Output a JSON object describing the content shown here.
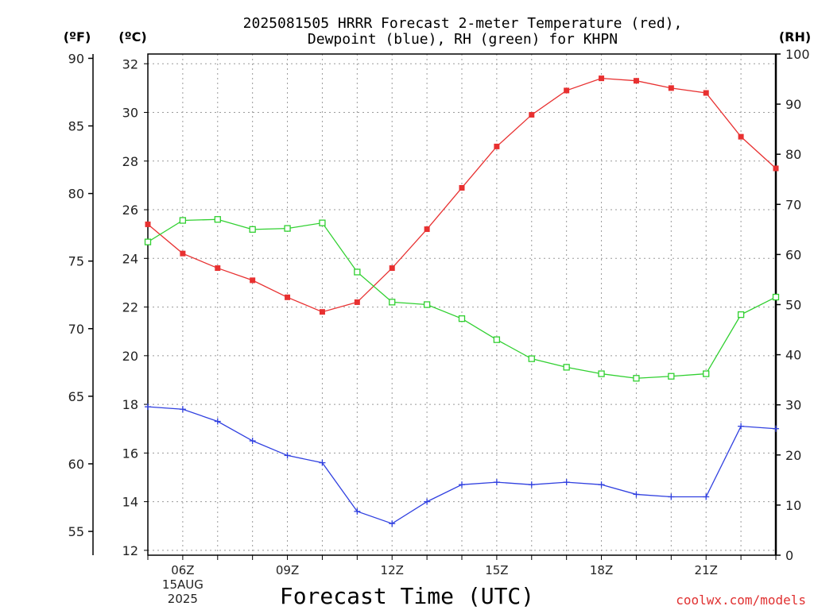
{
  "chart_data": {
    "type": "line",
    "title_line1": "2025081505 HRRR Forecast 2-meter Temperature (red),",
    "title_line2": "Dewpoint (blue), RH (green) for KHPN",
    "unit_f": "(ºF)",
    "unit_c": "(ºC)",
    "unit_rh": "(RH)",
    "xlabel": "Forecast Time (UTC)",
    "credit": "coolwx.com/models",
    "x_hours": [
      5,
      6,
      7,
      8,
      9,
      10,
      11,
      12,
      13,
      14,
      15,
      16,
      17,
      18,
      19,
      20,
      21,
      22,
      23
    ],
    "x_ticks": [
      {
        "hour": 6,
        "label": "06Z",
        "sub1": "15AUG",
        "sub2": "2025"
      },
      {
        "hour": 9,
        "label": "09Z"
      },
      {
        "hour": 12,
        "label": "12Z"
      },
      {
        "hour": 15,
        "label": "15Z"
      },
      {
        "hour": 18,
        "label": "18Z"
      },
      {
        "hour": 21,
        "label": "21Z"
      }
    ],
    "y_celsius_ticks": [
      "12",
      "14",
      "16",
      "18",
      "20",
      "22",
      "24",
      "26",
      "28",
      "30",
      "32"
    ],
    "y_fahrenheit_ticks": [
      "55",
      "60",
      "65",
      "70",
      "75",
      "80",
      "85",
      "90"
    ],
    "y_rh_ticks": [
      "0",
      "10",
      "20",
      "30",
      "40",
      "50",
      "60",
      "70",
      "80",
      "90",
      "100"
    ],
    "celsius_range": [
      11.8,
      32.4
    ],
    "rh_range": [
      0,
      100
    ],
    "series": [
      {
        "key": "temperature",
        "unit": "C",
        "color": "#e83030",
        "marker": "filled-square",
        "values": [
          25.4,
          24.2,
          23.6,
          23.1,
          22.4,
          21.8,
          22.2,
          23.6,
          25.2,
          26.9,
          28.6,
          29.9,
          30.9,
          31.4,
          31.3,
          31.0,
          30.8,
          29.0,
          27.7
        ]
      },
      {
        "key": "dewpoint",
        "unit": "C",
        "color": "#3040e0",
        "marker": "plus",
        "values": [
          17.9,
          17.8,
          17.3,
          16.5,
          15.9,
          15.6,
          13.6,
          13.1,
          14.0,
          14.7,
          14.8,
          14.7,
          14.8,
          14.7,
          14.3,
          14.2,
          14.2,
          17.1,
          17.0
        ]
      },
      {
        "key": "rh",
        "unit": "%",
        "color": "#30d030",
        "marker": "open-square",
        "values": [
          62.5,
          66.8,
          67.0,
          65.0,
          65.2,
          66.3,
          56.5,
          50.5,
          50.0,
          47.2,
          43.0,
          39.2,
          37.5,
          36.2,
          35.3,
          35.7,
          36.2,
          48.0,
          51.5
        ]
      }
    ]
  }
}
